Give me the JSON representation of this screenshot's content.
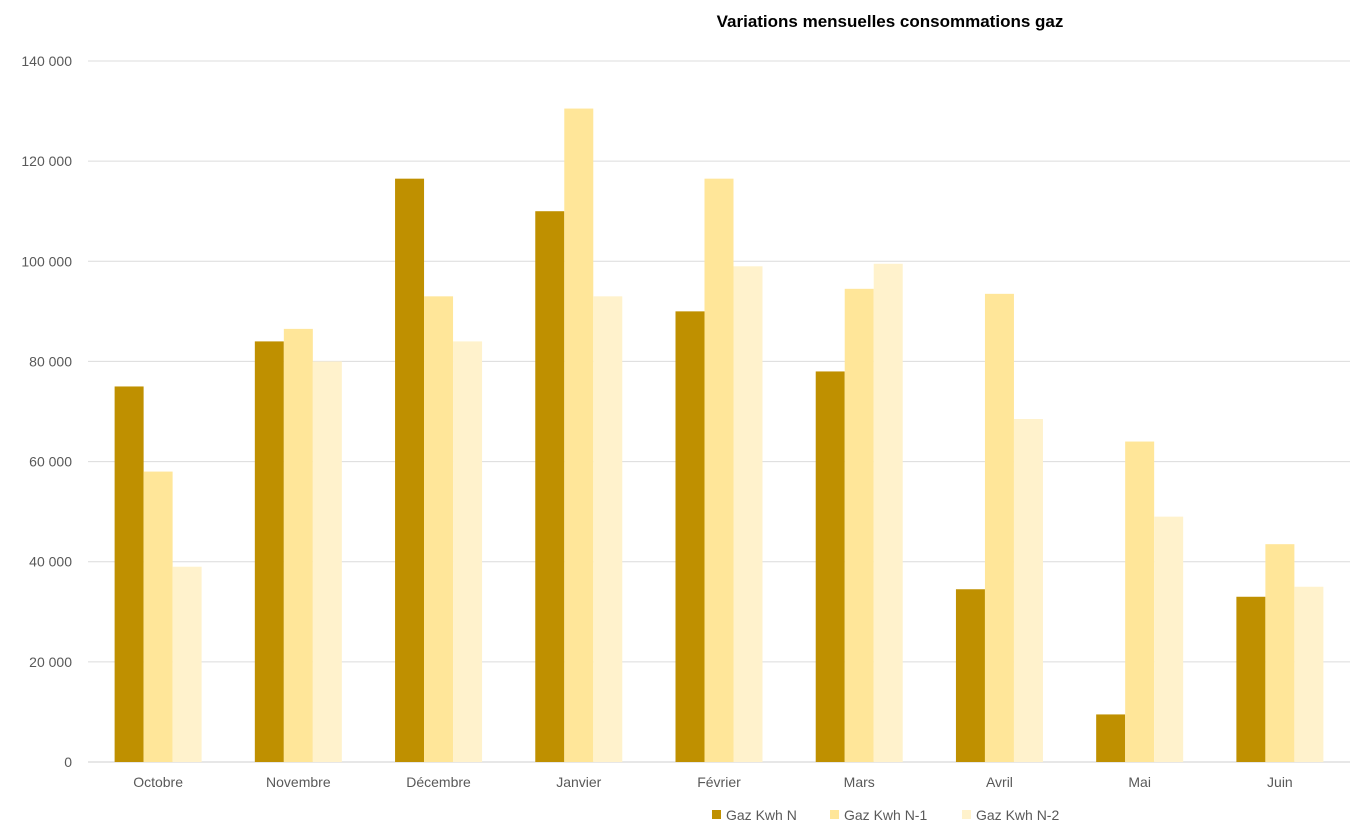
{
  "chart_data": {
    "type": "bar",
    "title": "Variations mensuelles consommations gaz",
    "xlabel": "",
    "ylabel": "",
    "categories": [
      "Octobre",
      "Novembre",
      "Décembre",
      "Janvier",
      "Février",
      "Mars",
      "Avril",
      "Mai",
      "Juin"
    ],
    "series": [
      {
        "name": "Gaz Kwh N",
        "color": "#bf9000",
        "values": [
          75000,
          84000,
          116500,
          110000,
          90000,
          78000,
          34500,
          9500,
          33000
        ]
      },
      {
        "name": "Gaz Kwh N-1",
        "color": "#ffe699",
        "values": [
          58000,
          86500,
          93000,
          130500,
          116500,
          94500,
          93500,
          64000,
          43500
        ]
      },
      {
        "name": "Gaz Kwh N-2",
        "color": "#fff2cc",
        "values": [
          39000,
          80000,
          84000,
          93000,
          99000,
          99500,
          68500,
          49000,
          35000
        ]
      }
    ],
    "ylim": [
      0,
      140000
    ],
    "yticks": [
      0,
      20000,
      40000,
      60000,
      80000,
      100000,
      120000,
      140000
    ],
    "ytick_labels": [
      "0",
      "20 000",
      "40 000",
      "60 000",
      "80 000",
      "100 000",
      "120 000",
      "140 000"
    ],
    "grid": true,
    "legend_position": "bottom"
  }
}
